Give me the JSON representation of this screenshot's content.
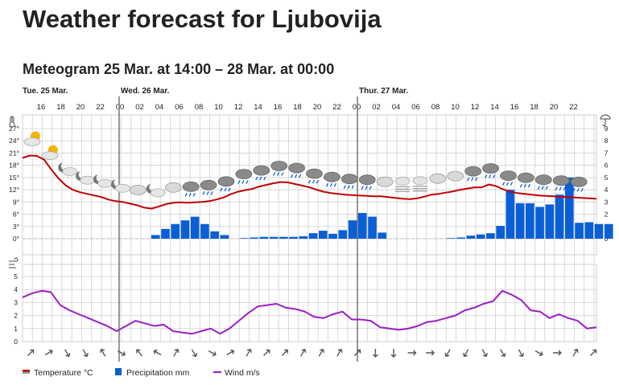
{
  "page": {
    "title": "Weather forecast for Ljubovija",
    "subtitle": "Meteogram 25 Mar. at 14:00 – 28 Mar. at 00:00"
  },
  "colors": {
    "temperature": "#c00000",
    "precipitation": "#0a5fd6",
    "wind": "#9b1fc4",
    "grid": "#d8d8d8",
    "day_line": "#555555"
  },
  "chart_data": {
    "type": "line",
    "hours": [
      "16",
      "18",
      "20",
      "22",
      "00",
      "02",
      "04",
      "06",
      "08",
      "10",
      "12",
      "14",
      "16",
      "18",
      "20",
      "22",
      "00",
      "02",
      "04",
      "06",
      "08",
      "10",
      "12",
      "14",
      "16",
      "18",
      "20",
      "22"
    ],
    "days": [
      {
        "label": "Tue. 25 Mar."
      },
      {
        "label": "Wed. 26 Mar."
      },
      {
        "label": "Thur. 27 Mar."
      }
    ],
    "temperature": {
      "name": "Temperature °C",
      "unit": "°C",
      "yticks": [
        "27°",
        "24°",
        "21°",
        "18°",
        "15°",
        "12°",
        "9°",
        "6°",
        "3°",
        "0°"
      ],
      "ylim": [
        0,
        27
      ],
      "values": [
        19.8,
        20.4,
        20.3,
        19.4,
        17.0,
        14.8,
        13.1,
        12.0,
        11.4,
        11.0,
        10.6,
        10.2,
        9.6,
        9.2,
        9.0,
        8.6,
        8.2,
        7.6,
        7.4,
        7.9,
        8.5,
        8.8,
        8.9,
        8.8,
        8.9,
        9.0,
        9.2,
        9.6,
        10.1,
        10.9,
        11.5,
        11.9,
        12.2,
        12.8,
        13.2,
        13.6,
        13.9,
        13.8,
        13.4,
        13.0,
        12.6,
        12.0,
        11.5,
        11.2,
        11.0,
        10.8,
        10.7,
        10.6,
        10.5,
        10.4,
        10.4,
        10.2,
        10.0,
        9.8,
        9.7,
        9.9,
        10.3,
        10.8,
        11.0,
        11.3,
        11.6,
        12.0,
        12.3,
        12.6,
        12.6,
        13.3,
        12.9,
        12.1,
        11.5,
        11.2,
        11.0,
        10.8,
        10.6,
        10.5,
        10.4,
        10.3,
        10.2,
        10.1,
        10.0,
        9.9,
        9.8
      ]
    },
    "precipitation": {
      "name": "Precipitation mm",
      "unit": "mm",
      "yticks": [
        "9",
        "8",
        "7",
        "6",
        "5",
        "4",
        "3",
        "2",
        "1",
        "0"
      ],
      "ylim": [
        0,
        9
      ],
      "values": [
        0,
        0,
        0,
        0,
        0,
        0,
        0,
        0,
        0,
        0,
        0,
        0,
        0,
        0.3,
        0.8,
        1.2,
        1.5,
        1.8,
        1.2,
        0.6,
        0.3,
        0,
        0.05,
        0.1,
        0.15,
        0.15,
        0.15,
        0.15,
        0.2,
        0.45,
        0.65,
        0.4,
        0.7,
        1.5,
        2.1,
        1.8,
        0.5,
        0,
        0,
        0,
        0,
        0,
        0,
        0.05,
        0.1,
        0.25,
        0.35,
        0.45,
        1.05,
        4.0,
        2.9,
        2.9,
        2.6,
        2.8,
        3.6,
        5.0,
        1.3,
        1.35,
        1.2,
        1.2
      ]
    },
    "wind": {
      "name": "Wind m/s",
      "unit": "m/s",
      "yticks": [
        "5",
        "4",
        "3",
        "2",
        "1",
        "0"
      ],
      "ylim": [
        0,
        5
      ],
      "values": [
        3.4,
        3.7,
        3.9,
        3.8,
        2.8,
        2.4,
        2.1,
        1.8,
        1.5,
        1.2,
        0.8,
        1.2,
        1.6,
        1.4,
        1.2,
        1.3,
        0.8,
        0.7,
        0.6,
        0.8,
        1.0,
        0.6,
        1.0,
        1.6,
        2.2,
        2.7,
        2.8,
        2.9,
        2.6,
        2.5,
        2.3,
        1.9,
        1.8,
        2.1,
        2.3,
        1.7,
        1.7,
        1.6,
        1.1,
        1.0,
        0.9,
        1.0,
        1.2,
        1.5,
        1.6,
        1.8,
        2.0,
        2.4,
        2.6,
        2.9,
        3.1,
        3.9,
        3.6,
        3.2,
        2.4,
        2.3,
        1.8,
        2.1,
        1.8,
        1.6,
        1.0,
        1.1
      ]
    },
    "wind_directions": [
      45,
      60,
      150,
      150,
      330,
      120,
      320,
      300,
      30,
      150,
      120,
      60,
      30,
      45,
      45,
      30,
      30,
      30,
      45,
      180,
      180,
      90,
      90,
      210,
      210,
      150,
      150,
      150,
      120,
      90,
      30,
      45
    ],
    "weather_symbols": [
      "partly-cloudy-day",
      "partly-cloudy-day",
      "cloudy-night",
      "cloudy-night",
      "cloudy-night",
      "cloudy-night",
      "cloudy",
      "cloudy-night",
      "cloudy",
      "light-rain",
      "light-rain",
      "light-rain",
      "light-rain",
      "light-rain",
      "light-rain",
      "light-rain",
      "light-rain",
      "light-rain",
      "light-rain",
      "light-rain",
      "cloudy",
      "fog",
      "fog",
      "cloudy",
      "cloudy",
      "light-rain",
      "light-rain",
      "light-rain",
      "light-rain",
      "light-rain",
      "light-rain",
      "light-rain"
    ],
    "legend": [
      {
        "key": "temperature",
        "label": "Temperature °C"
      },
      {
        "key": "precipitation",
        "label": "Precipitation mm"
      },
      {
        "key": "wind",
        "label": "Wind m/s"
      }
    ]
  }
}
